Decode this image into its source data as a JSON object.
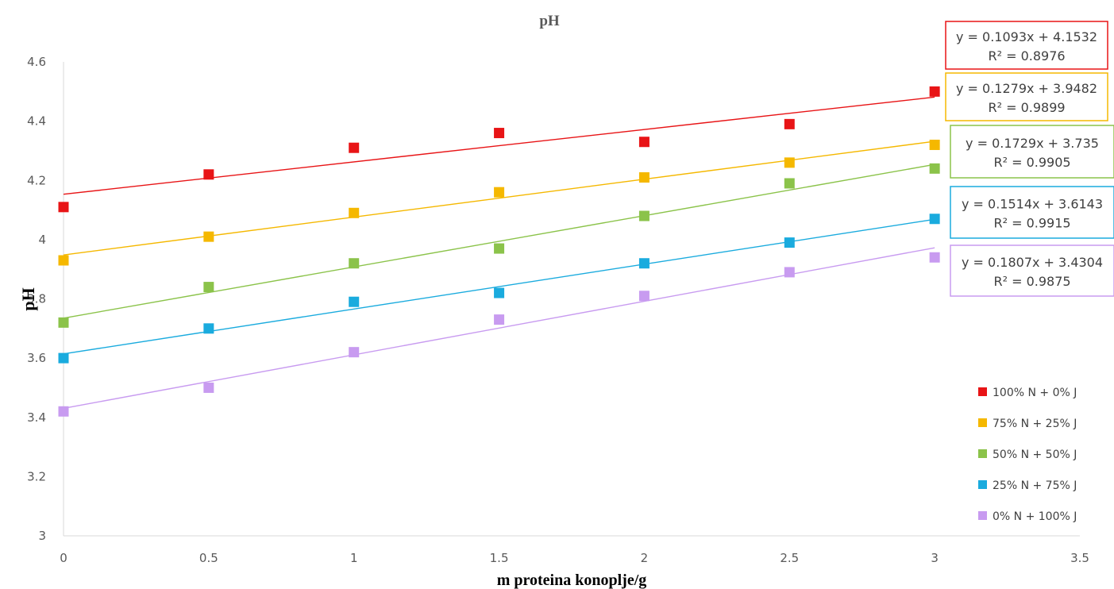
{
  "chart_data": {
    "type": "scatter",
    "title": "pH",
    "xlabel": "m proteina konoplje/g",
    "ylabel": "pH",
    "xlim": [
      0,
      3.5
    ],
    "ylim": [
      3,
      4.6
    ],
    "xticks": [
      "0",
      "0.5",
      "1",
      "1.5",
      "2",
      "2.5",
      "3",
      "3.5"
    ],
    "yticks": [
      "3",
      "3.2",
      "3.4",
      "3.6",
      "3.8",
      "4",
      "4.2",
      "4.4",
      "4.6"
    ],
    "grid": false,
    "legend_position": "right",
    "x": [
      0,
      0.5,
      1,
      1.5,
      2,
      2.5,
      3
    ],
    "series": [
      {
        "name": "100% N + 0% J",
        "color": "#E81416",
        "values": [
          4.11,
          4.22,
          4.31,
          4.36,
          4.33,
          4.39,
          4.5
        ],
        "trendline": {
          "slope": 0.1093,
          "intercept": 4.1532
        },
        "equation": "y = 0.1093x + 4.1532",
        "r2": "R² = 0.8976"
      },
      {
        "name": "75% N + 25% J",
        "color": "#F5B800",
        "values": [
          3.93,
          4.01,
          4.09,
          4.16,
          4.21,
          4.26,
          4.32
        ],
        "trendline": {
          "slope": 0.1279,
          "intercept": 3.9482
        },
        "equation": "y = 0.1279x + 3.9482",
        "r2": "R² = 0.9899"
      },
      {
        "name": "50% N + 50% J",
        "color": "#8BC34A",
        "values": [
          3.72,
          3.84,
          3.92,
          3.97,
          4.08,
          4.19,
          4.24
        ],
        "trendline": {
          "slope": 0.1729,
          "intercept": 3.735
        },
        "equation": "y = 0.1729x + 3.735",
        "r2": "R² = 0.9905"
      },
      {
        "name": "25% N + 75% J",
        "color": "#1AABDE",
        "values": [
          3.6,
          3.7,
          3.79,
          3.82,
          3.92,
          3.99,
          4.07
        ],
        "trendline": {
          "slope": 0.1514,
          "intercept": 3.6143
        },
        "equation": "y = 0.1514x + 3.6143",
        "r2": "R² = 0.9915"
      },
      {
        "name": "0% N + 100% J",
        "color": "#C89BF0",
        "values": [
          3.42,
          3.5,
          3.62,
          3.73,
          3.81,
          3.89,
          3.94
        ],
        "trendline": {
          "slope": 0.1807,
          "intercept": 3.4304
        },
        "equation": "y = 0.1807x + 3.4304",
        "r2": "R² = 0.9875"
      }
    ]
  },
  "colors": {
    "axis": "#D9D9D9",
    "tick_text": "#595959",
    "title_text": "#595959"
  }
}
